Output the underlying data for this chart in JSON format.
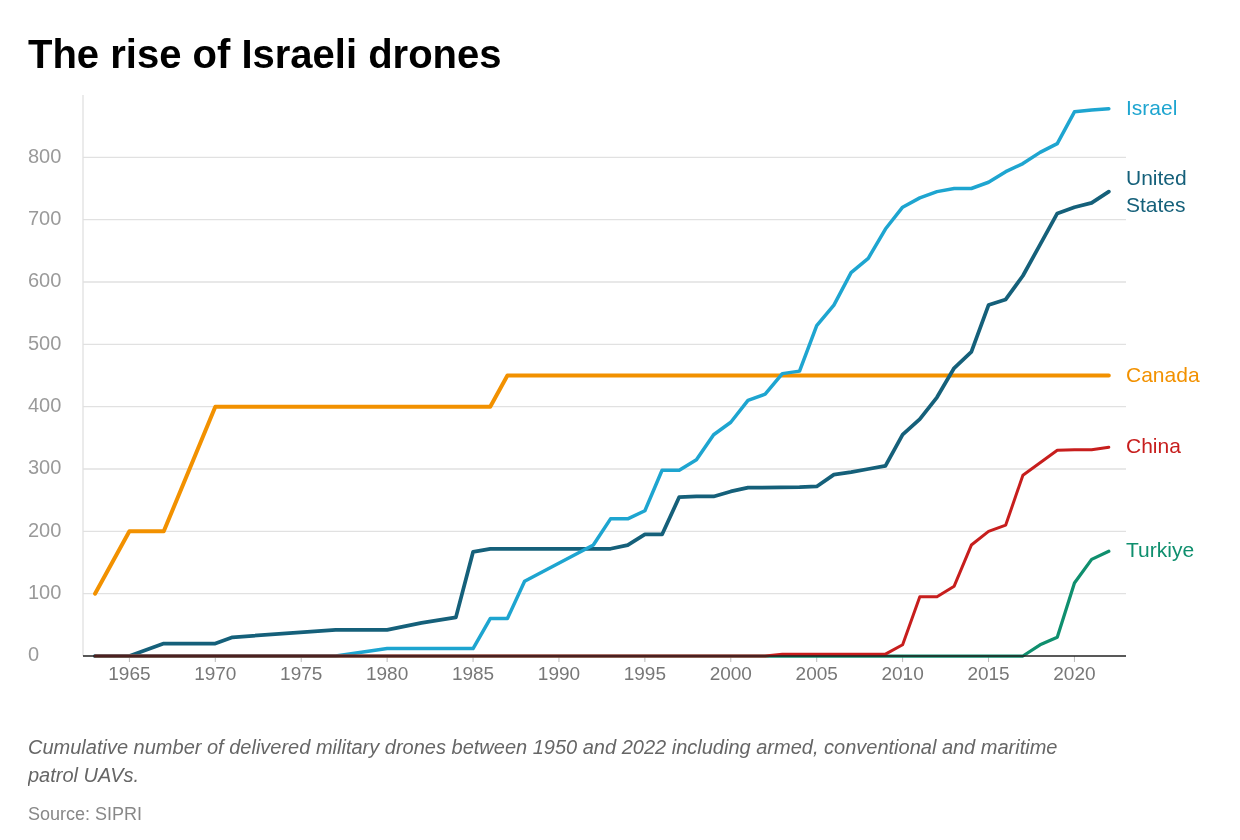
{
  "chart_data": {
    "type": "line",
    "title": "The rise of Israeli drones",
    "xlim": [
      1962.3,
      2023
    ],
    "xticks": [
      1965,
      1970,
      1975,
      1980,
      1985,
      1990,
      1995,
      2000,
      2005,
      2010,
      2015,
      2020
    ],
    "yticks": [
      0,
      100,
      200,
      300,
      400,
      500,
      600,
      700,
      800
    ],
    "ylim": [
      0,
      900
    ],
    "grid": "y",
    "legend": false,
    "marker": "none",
    "line_style": "solid",
    "series": [
      {
        "name": "Canada",
        "color": "#f29100",
        "x": [
          1963,
          1965,
          1967,
          1970,
          1986,
          1987,
          2022
        ],
        "values": [
          100,
          200,
          200,
          400,
          400,
          450,
          450
        ]
      },
      {
        "name": "United States",
        "color": "#15607a",
        "x": [
          1963,
          1965,
          1967,
          1970,
          1971,
          1977,
          1980,
          1982,
          1984,
          1985,
          1986,
          1993,
          1994,
          1995,
          1996,
          1997,
          1998,
          1999,
          2000,
          2001,
          2004,
          2005,
          2006,
          2007,
          2008,
          2009,
          2010,
          2011,
          2012,
          2013,
          2014,
          2015,
          2016,
          2017,
          2018,
          2019,
          2020,
          2021,
          2022
        ],
        "values": [
          0,
          0,
          20,
          20,
          30,
          42,
          42,
          53,
          62,
          167,
          172,
          172,
          178,
          195,
          195,
          255,
          256,
          256,
          264,
          270,
          271,
          272,
          291,
          295,
          300,
          305,
          355,
          380,
          415,
          462,
          488,
          563,
          572,
          610,
          660,
          710,
          720,
          727,
          745
        ]
      },
      {
        "name": "Israel",
        "color": "#1ea5d0",
        "x": [
          1963,
          1977,
          1980,
          1985,
          1986,
          1987,
          1988,
          1992,
          1993,
          1994,
          1995,
          1996,
          1997,
          1998,
          1999,
          2000,
          2001,
          2002,
          2003,
          2004,
          2005,
          2006,
          2007,
          2008,
          2009,
          2010,
          2011,
          2012,
          2013,
          2014,
          2015,
          2016,
          2017,
          2018,
          2019,
          2020,
          2021,
          2022
        ],
        "values": [
          0,
          0,
          12,
          12,
          60,
          60,
          120,
          178,
          220,
          220,
          233,
          298,
          298,
          315,
          355,
          375,
          410,
          420,
          453,
          457,
          530,
          563,
          615,
          638,
          685,
          720,
          735,
          745,
          750,
          750,
          760,
          777,
          790,
          808,
          822,
          873,
          876,
          878
        ]
      },
      {
        "name": "Turkiye",
        "color": "#0f8f6e",
        "x": [
          1963,
          2017,
          2018,
          2019,
          2020,
          2021,
          2022
        ],
        "values": [
          0,
          0,
          18,
          30,
          117,
          155,
          168
        ]
      },
      {
        "name": "China",
        "color": "#c71e1d",
        "x": [
          1963,
          2002,
          2003,
          2009,
          2010,
          2011,
          2012,
          2013,
          2014,
          2015,
          2016,
          2017,
          2018,
          2019,
          2020,
          2021,
          2022
        ],
        "values": [
          0,
          0,
          3,
          3,
          18,
          95,
          95,
          112,
          178,
          200,
          210,
          290,
          310,
          330,
          331,
          331,
          335
        ]
      }
    ],
    "annotations": [
      "Cumulative number of delivered military drones between 1950 and 2022 including armed, conventional and maritime patrol UAVs.",
      "Source: SIPRI"
    ]
  }
}
